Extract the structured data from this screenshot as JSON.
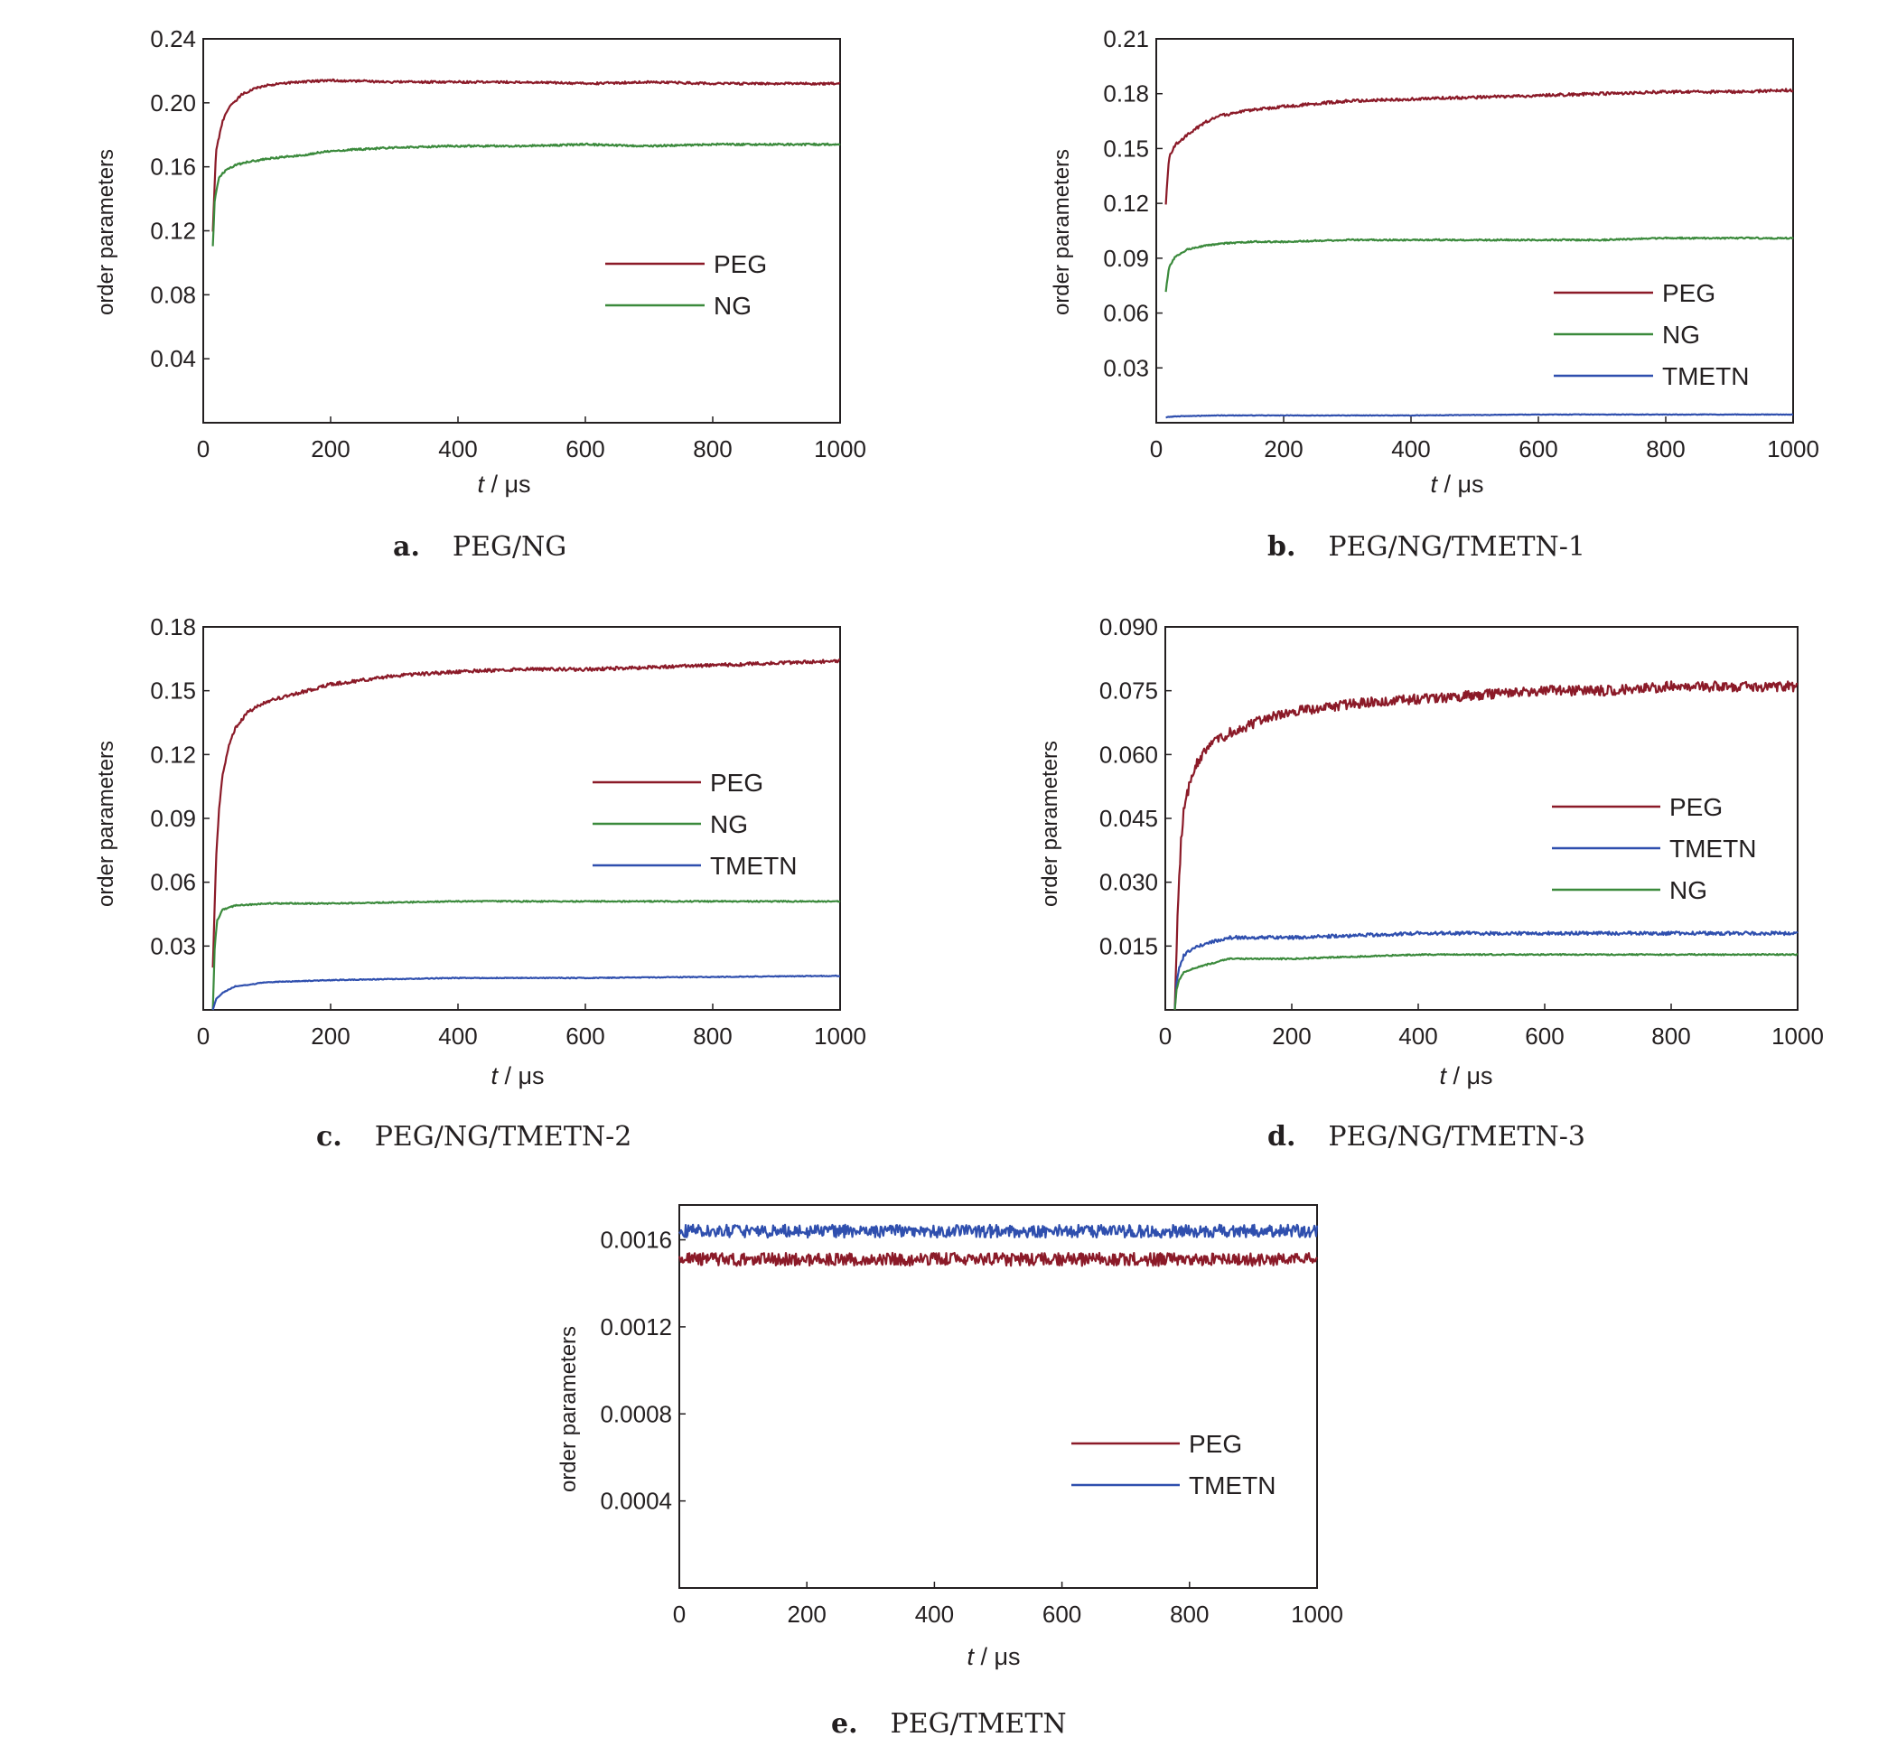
{
  "colors": {
    "PEG": "#8b1a28",
    "NG": "#3b8a3c",
    "TMETN": "#2f4fae",
    "axis": "#231f20"
  },
  "chart_data": [
    {
      "type": "line",
      "panel_letter": "a.",
      "caption": "PEG/NG",
      "xlabel_italic": "t",
      "xlabel_rest": " / μs",
      "ylabel": "order parameters",
      "xlim": [
        0,
        1000
      ],
      "ylim": [
        0,
        0.24
      ],
      "xticks": [
        0,
        200,
        400,
        600,
        800,
        1000
      ],
      "yticks": [
        0.04,
        0.08,
        0.12,
        0.16,
        0.2,
        0.24
      ],
      "ytick_labels": [
        "0.04",
        "0.08",
        "0.12",
        "0.16",
        "0.20",
        "0.24"
      ],
      "legend_position": "center-right",
      "legend_order": [
        "PEG",
        "NG"
      ],
      "series": [
        {
          "name": "PEG",
          "x": [
            15,
            20,
            30,
            40,
            60,
            80,
            100,
            150,
            200,
            300,
            400,
            500,
            600,
            700,
            800,
            900,
            1000
          ],
          "y": [
            0.12,
            0.17,
            0.188,
            0.197,
            0.205,
            0.209,
            0.211,
            0.213,
            0.214,
            0.213,
            0.213,
            0.213,
            0.212,
            0.213,
            0.212,
            0.212,
            0.212
          ],
          "noise": 0.0007
        },
        {
          "name": "NG",
          "x": [
            15,
            18,
            25,
            35,
            50,
            70,
            100,
            150,
            200,
            300,
            400,
            500,
            600,
            700,
            800,
            900,
            1000
          ],
          "y": [
            0.11,
            0.14,
            0.153,
            0.158,
            0.161,
            0.163,
            0.165,
            0.167,
            0.17,
            0.172,
            0.173,
            0.173,
            0.174,
            0.173,
            0.174,
            0.174,
            0.174
          ],
          "noise": 0.0006
        }
      ]
    },
    {
      "type": "line",
      "panel_letter": "b.",
      "caption": "PEG/NG/TMETN-1",
      "xlabel_italic": "t",
      "xlabel_rest": " / μs",
      "ylabel": "order parameters",
      "xlim": [
        0,
        1000
      ],
      "ylim": [
        0,
        0.21
      ],
      "xticks": [
        0,
        200,
        400,
        600,
        800,
        1000
      ],
      "yticks": [
        0.03,
        0.06,
        0.09,
        0.12,
        0.15,
        0.18,
        0.21
      ],
      "ytick_labels": [
        "0.03",
        "0.06",
        "0.09",
        "0.12",
        "0.15",
        "0.18",
        "0.21"
      ],
      "legend_position": "lower-right",
      "legend_order": [
        "PEG",
        "NG",
        "TMETN"
      ],
      "series": [
        {
          "name": "PEG",
          "x": [
            15,
            20,
            30,
            50,
            80,
            100,
            150,
            200,
            300,
            400,
            500,
            600,
            700,
            800,
            900,
            1000
          ],
          "y": [
            0.12,
            0.145,
            0.152,
            0.158,
            0.165,
            0.168,
            0.171,
            0.173,
            0.176,
            0.177,
            0.178,
            0.179,
            0.18,
            0.181,
            0.181,
            0.182
          ],
          "noise": 0.0008
        },
        {
          "name": "NG",
          "x": [
            15,
            20,
            30,
            50,
            80,
            100,
            150,
            200,
            300,
            400,
            500,
            600,
            700,
            800,
            900,
            1000
          ],
          "y": [
            0.072,
            0.085,
            0.091,
            0.095,
            0.097,
            0.098,
            0.099,
            0.099,
            0.1,
            0.1,
            0.1,
            0.1,
            0.1,
            0.101,
            0.101,
            0.101
          ],
          "noise": 0.0004
        },
        {
          "name": "TMETN",
          "x": [
            15,
            30,
            100,
            200,
            400,
            600,
            800,
            1000
          ],
          "y": [
            0.003,
            0.0035,
            0.004,
            0.004,
            0.004,
            0.0045,
            0.0045,
            0.0045
          ],
          "noise": 0.00015
        }
      ]
    },
    {
      "type": "line",
      "panel_letter": "c.",
      "caption": "PEG/NG/TMETN-2",
      "xlabel_italic": "t",
      "xlabel_rest": " / μs",
      "ylabel": "order parameters",
      "xlim": [
        0,
        1000
      ],
      "ylim": [
        0,
        0.18
      ],
      "xticks": [
        0,
        200,
        400,
        600,
        800,
        1000
      ],
      "yticks": [
        0.03,
        0.06,
        0.09,
        0.12,
        0.15,
        0.18
      ],
      "ytick_labels": [
        "0.03",
        "0.06",
        "0.09",
        "0.12",
        "0.15",
        "0.18"
      ],
      "legend_position": "center-right",
      "legend_order": [
        "PEG",
        "NG",
        "TMETN"
      ],
      "series": [
        {
          "name": "PEG",
          "x": [
            15,
            20,
            25,
            30,
            40,
            50,
            70,
            100,
            150,
            200,
            300,
            400,
            500,
            600,
            700,
            800,
            900,
            1000
          ],
          "y": [
            0.02,
            0.07,
            0.095,
            0.11,
            0.124,
            0.132,
            0.14,
            0.145,
            0.149,
            0.153,
            0.157,
            0.159,
            0.16,
            0.16,
            0.161,
            0.162,
            0.163,
            0.164
          ],
          "noise": 0.0008
        },
        {
          "name": "NG",
          "x": [
            15,
            18,
            22,
            30,
            50,
            100,
            200,
            400,
            600,
            800,
            1000
          ],
          "y": [
            0.0,
            0.03,
            0.042,
            0.047,
            0.049,
            0.05,
            0.05,
            0.051,
            0.051,
            0.051,
            0.051
          ],
          "noise": 0.0003
        },
        {
          "name": "TMETN",
          "x": [
            15,
            20,
            30,
            50,
            100,
            200,
            400,
            600,
            800,
            1000
          ],
          "y": [
            0.0,
            0.005,
            0.008,
            0.011,
            0.013,
            0.014,
            0.015,
            0.015,
            0.0155,
            0.016
          ],
          "noise": 0.0002
        }
      ]
    },
    {
      "type": "line",
      "panel_letter": "d.",
      "caption": "PEG/NG/TMETN-3",
      "xlabel_italic": "t",
      "xlabel_rest": " / μs",
      "ylabel": "order parameters",
      "xlim": [
        0,
        1000
      ],
      "ylim": [
        0,
        0.09
      ],
      "xticks": [
        0,
        200,
        400,
        600,
        800,
        1000
      ],
      "yticks": [
        0.015,
        0.03,
        0.045,
        0.06,
        0.075,
        0.09
      ],
      "ytick_labels": [
        "0.015",
        "0.030",
        "0.045",
        "0.060",
        "0.075",
        "0.090"
      ],
      "legend_position": "center-right",
      "legend_order": [
        "PEG",
        "TMETN",
        "NG"
      ],
      "series": [
        {
          "name": "PEG",
          "x": [
            15,
            20,
            25,
            30,
            40,
            50,
            70,
            100,
            150,
            200,
            300,
            400,
            500,
            600,
            700,
            800,
            900,
            1000
          ],
          "y": [
            0.0,
            0.025,
            0.04,
            0.048,
            0.054,
            0.058,
            0.062,
            0.065,
            0.068,
            0.07,
            0.072,
            0.073,
            0.074,
            0.075,
            0.075,
            0.076,
            0.076,
            0.076
          ],
          "noise": 0.0012
        },
        {
          "name": "TMETN",
          "x": [
            15,
            18,
            22,
            30,
            50,
            100,
            200,
            400,
            600,
            800,
            1000
          ],
          "y": [
            0.0,
            0.007,
            0.01,
            0.013,
            0.015,
            0.017,
            0.017,
            0.018,
            0.018,
            0.018,
            0.018
          ],
          "noise": 0.0004
        },
        {
          "name": "NG",
          "x": [
            15,
            18,
            22,
            30,
            50,
            100,
            200,
            400,
            600,
            800,
            1000
          ],
          "y": [
            0.0,
            0.005,
            0.007,
            0.009,
            0.01,
            0.012,
            0.012,
            0.013,
            0.013,
            0.013,
            0.013
          ],
          "noise": 0.00015
        }
      ]
    },
    {
      "type": "line",
      "panel_letter": "e.",
      "caption": "PEG/TMETN",
      "xlabel_italic": "t",
      "xlabel_rest": " / μs",
      "ylabel": "order parameters",
      "xlim": [
        0,
        1000
      ],
      "ylim": [
        0,
        0.00176
      ],
      "xticks": [
        0,
        200,
        400,
        600,
        800,
        1000
      ],
      "yticks": [
        0.0004,
        0.0008,
        0.0012,
        0.0016
      ],
      "ytick_labels": [
        "0.0004",
        "0.0008",
        "0.0012",
        "0.0016"
      ],
      "legend_position": "lower-right",
      "legend_order": [
        "PEG",
        "TMETN"
      ],
      "series": [
        {
          "name": "PEG",
          "x": [
            0,
            1000
          ],
          "y": [
            0.00151,
            0.00151
          ],
          "noise": 3e-05
        },
        {
          "name": "TMETN",
          "x": [
            0,
            1000
          ],
          "y": [
            0.00164,
            0.00164
          ],
          "noise": 3e-05
        }
      ]
    }
  ]
}
